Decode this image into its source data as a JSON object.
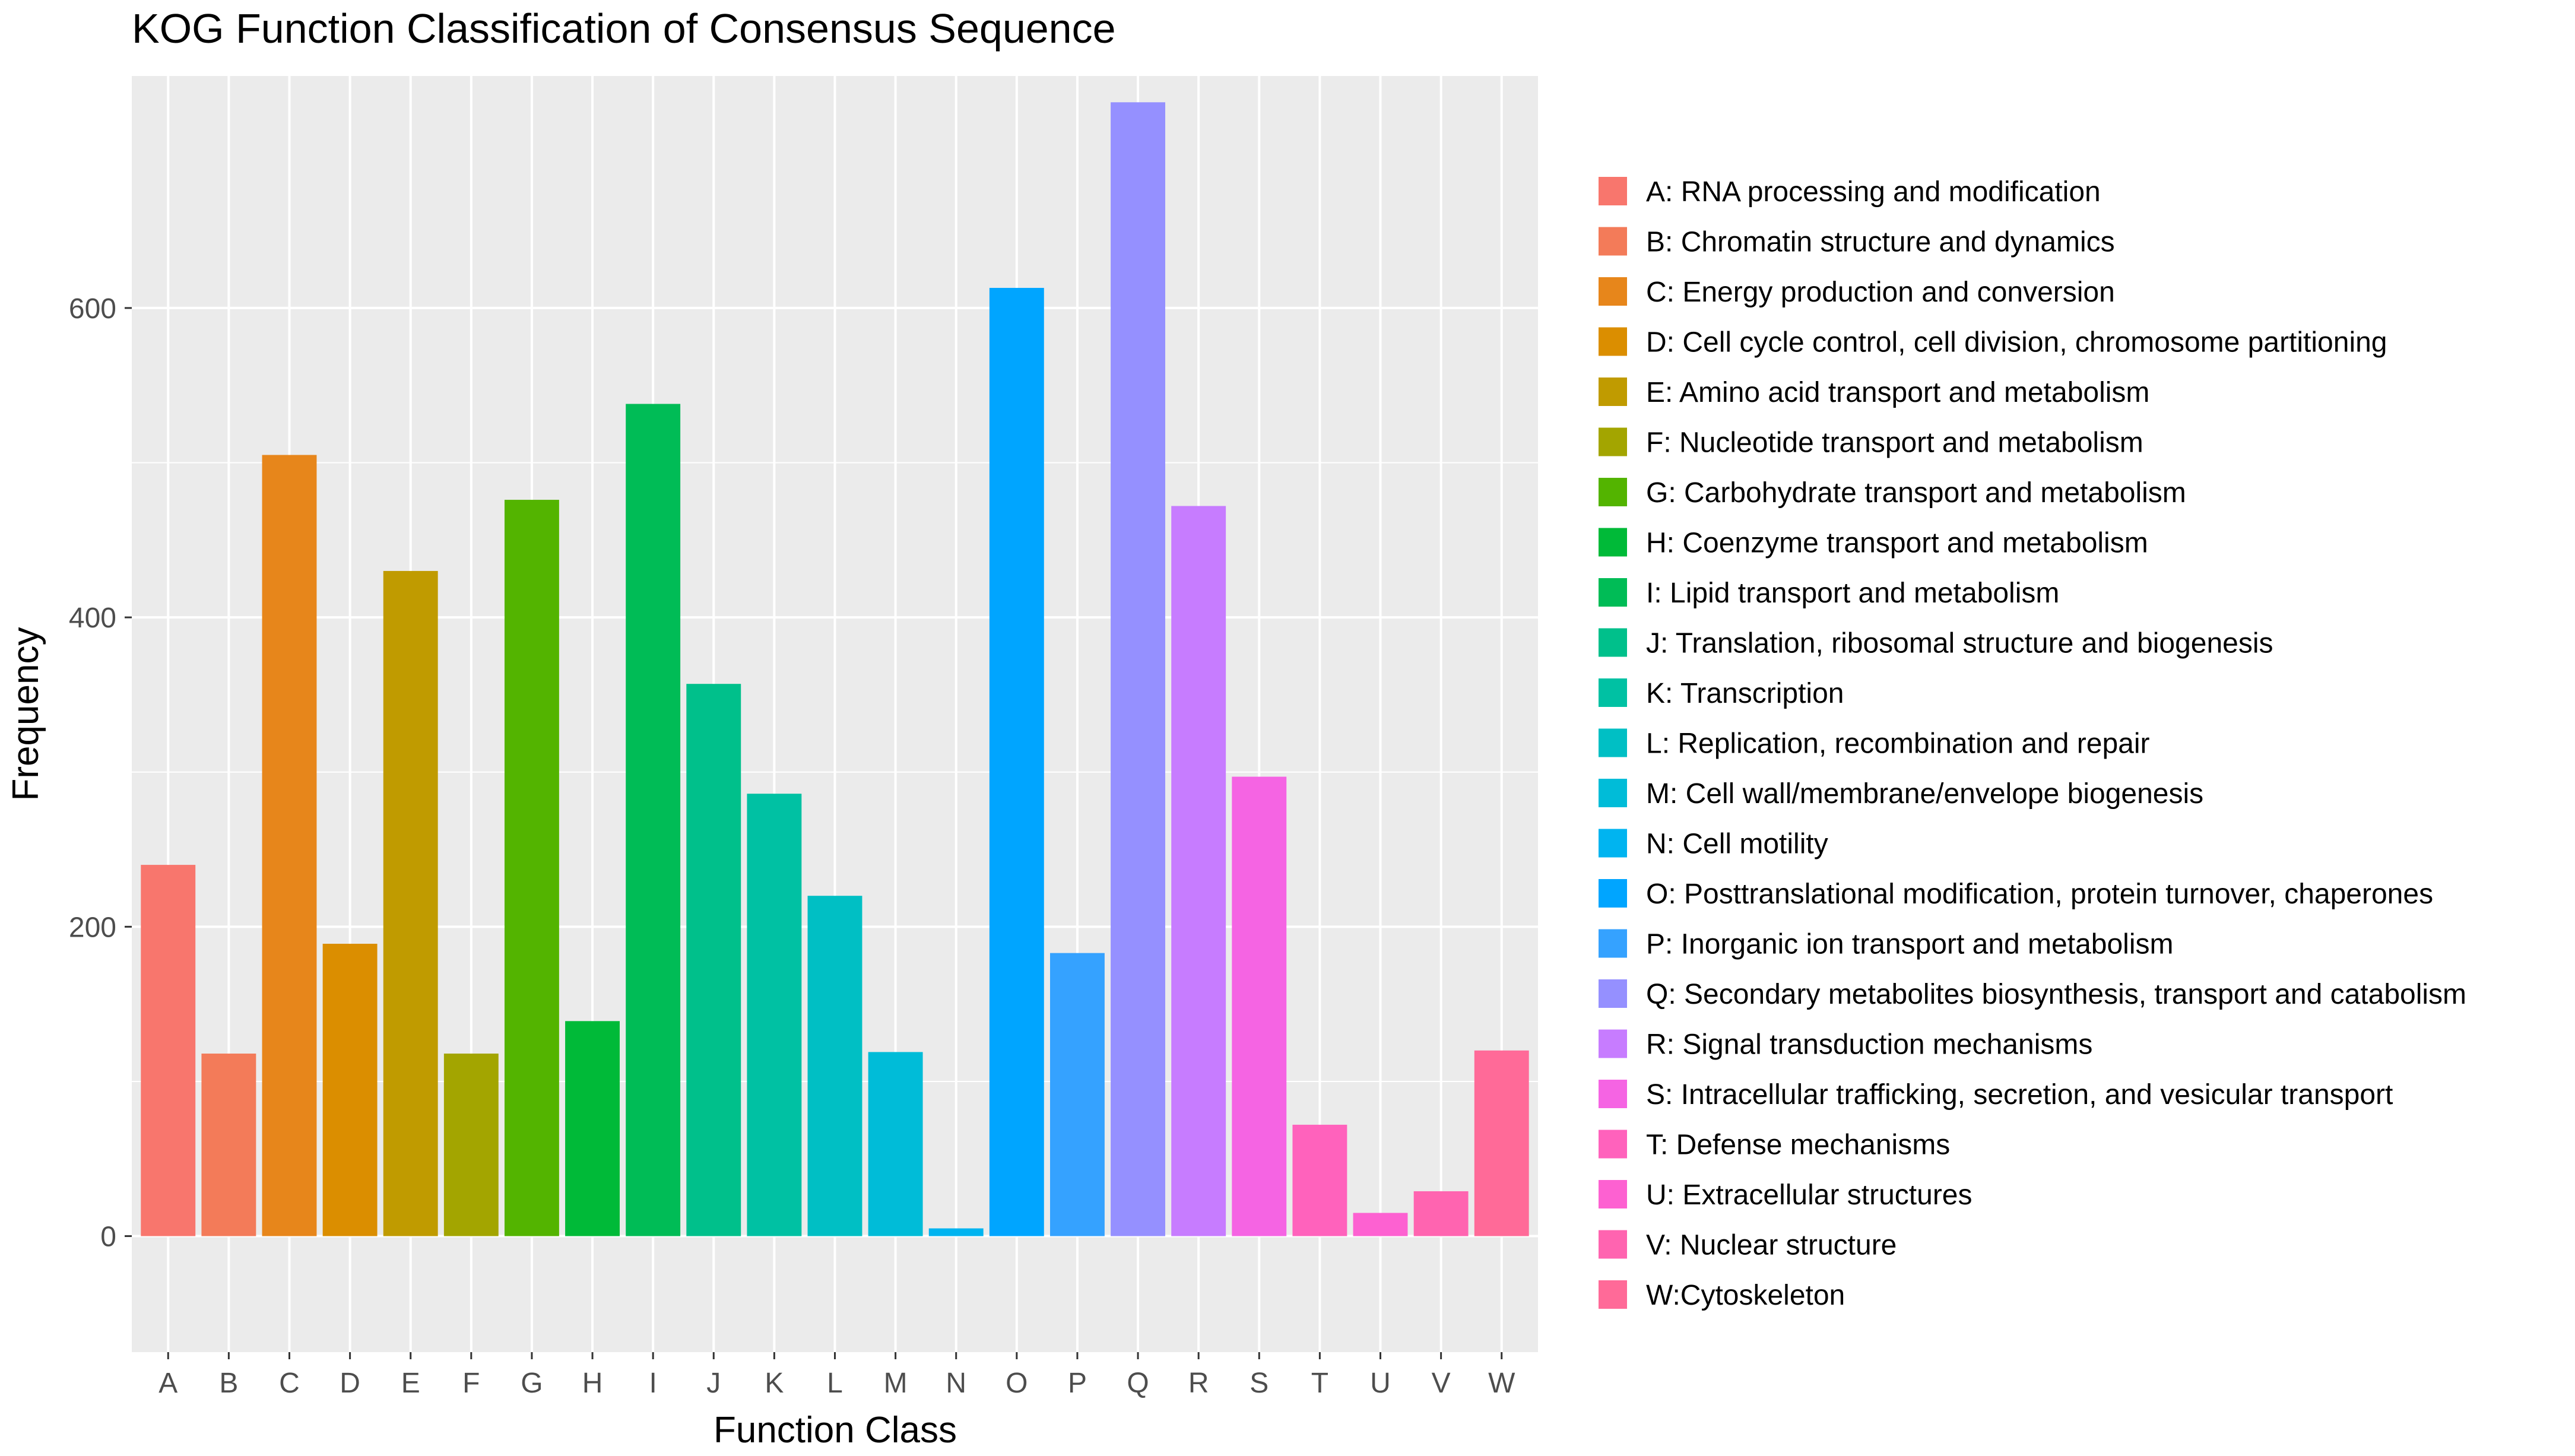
{
  "chart_data": {
    "type": "bar",
    "title": "KOG Function Classification of Consensus Sequence",
    "xlabel": "Function Class",
    "ylabel": "Frequency",
    "ylim": [
      -75,
      750
    ],
    "yticks": [
      0,
      200,
      400,
      600
    ],
    "grid": true,
    "legend_position": "right",
    "categories": [
      "A",
      "B",
      "C",
      "D",
      "E",
      "F",
      "G",
      "H",
      "I",
      "J",
      "K",
      "L",
      "M",
      "N",
      "O",
      "P",
      "Q",
      "R",
      "S",
      "T",
      "U",
      "V",
      "W"
    ],
    "values": [
      240,
      118,
      505,
      189,
      430,
      118,
      476,
      139,
      538,
      357,
      286,
      220,
      119,
      5,
      613,
      183,
      733,
      472,
      297,
      72,
      15,
      29,
      120
    ],
    "colors": [
      "#F8766D",
      "#F37B59",
      "#E7861B",
      "#DB8E00",
      "#C09B00",
      "#A3A500",
      "#53B400",
      "#00BA38",
      "#00BC56",
      "#00C08B",
      "#00C1A3",
      "#00BFC4",
      "#00BCD8",
      "#00B4F0",
      "#00A5FF",
      "#35A2FF",
      "#9590FF",
      "#C77CFF",
      "#F564E3",
      "#FF62BC",
      "#FD61D1",
      "#FF64B0",
      "#FF6A98"
    ],
    "legend": [
      "A: RNA processing and modification",
      "B: Chromatin structure and dynamics",
      "C: Energy production and conversion",
      "D: Cell cycle control, cell division, chromosome partitioning",
      "E: Amino acid transport and metabolism",
      "F: Nucleotide transport and metabolism",
      "G: Carbohydrate transport and metabolism",
      "H: Coenzyme transport and metabolism",
      "I: Lipid transport and metabolism",
      "J: Translation, ribosomal structure and biogenesis",
      "K: Transcription",
      "L: Replication, recombination and repair",
      "M: Cell wall/membrane/envelope biogenesis",
      "N: Cell motility",
      "O: Posttranslational modification, protein turnover, chaperones",
      "P: Inorganic ion transport and metabolism",
      "Q: Secondary metabolites biosynthesis, transport and catabolism",
      "R: Signal transduction mechanisms",
      "S: Intracellular trafficking, secretion, and vesicular transport",
      "T: Defense mechanisms",
      "U:  Extracellular structures",
      "V: Nuclear structure",
      "W:Cytoskeleton"
    ]
  }
}
